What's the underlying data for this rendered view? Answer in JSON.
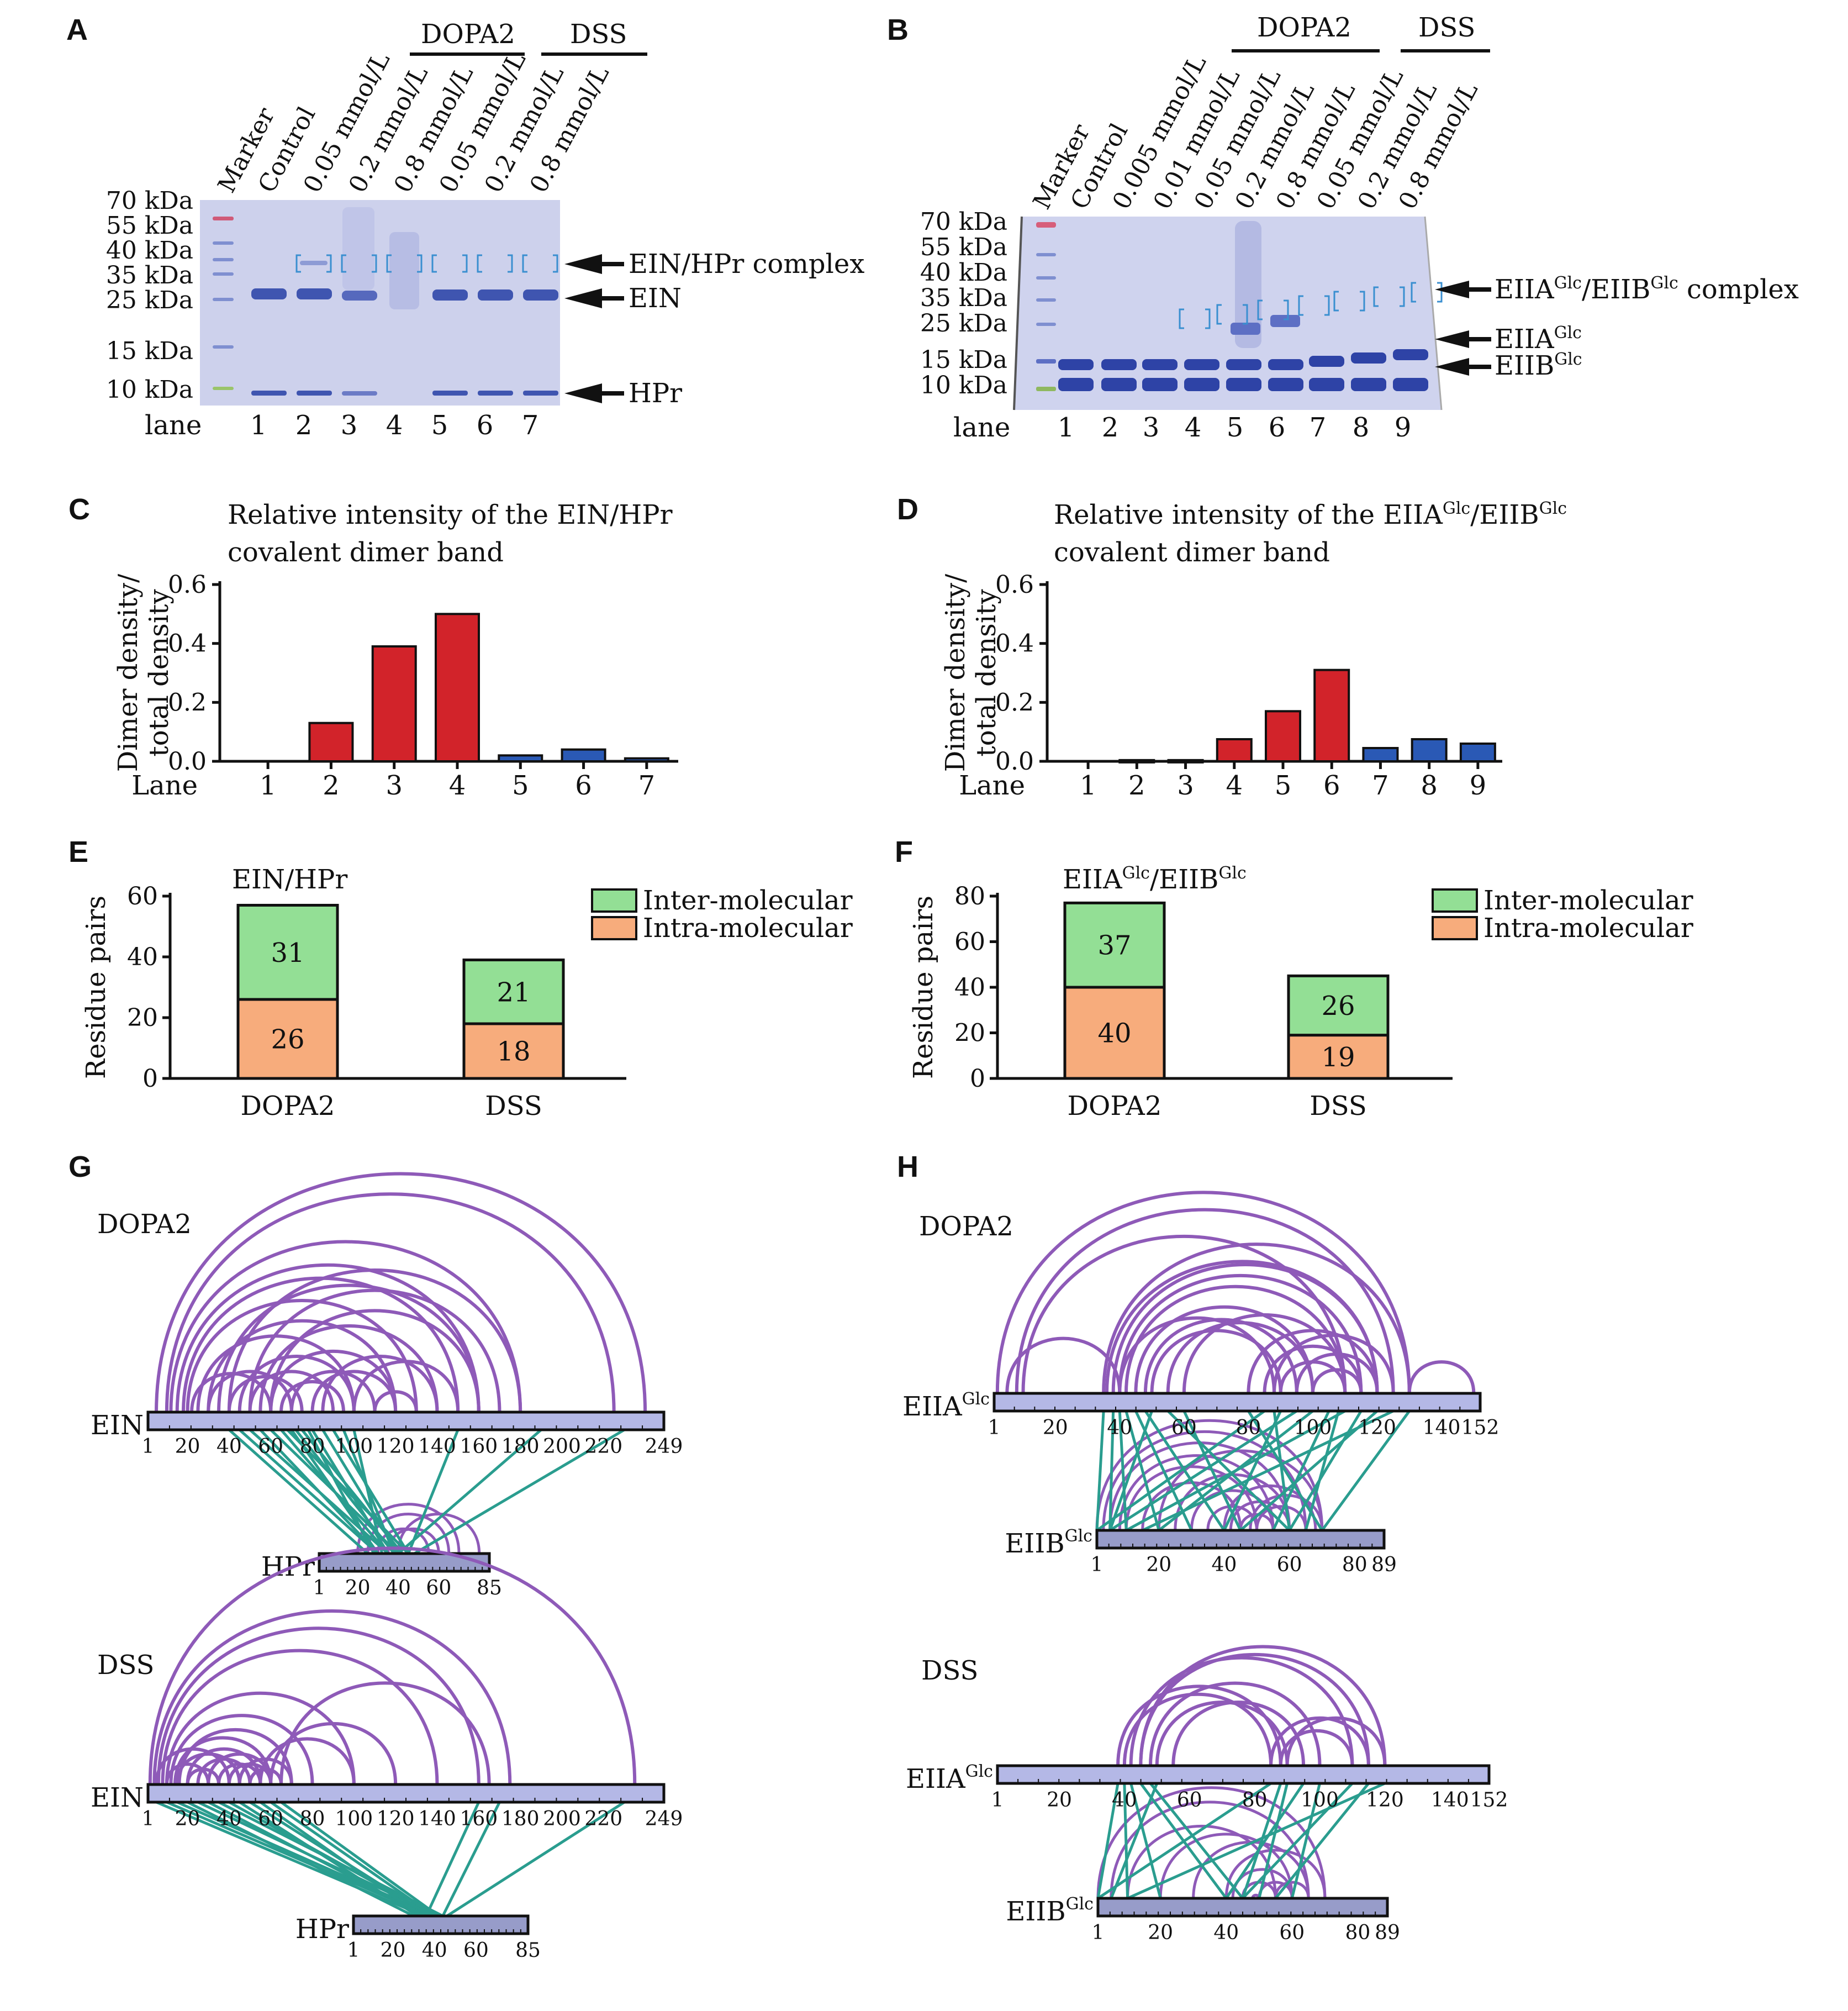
{
  "panels": {
    "A": {
      "letter": "A",
      "groups": [
        {
          "label": "DOPA2",
          "color": "#c1272d"
        },
        {
          "label": "DSS",
          "color": "#2b3990"
        }
      ],
      "lanes_header": [
        "Marker",
        "Control",
        "0.05 mmol/L",
        "0.2 mmol/L",
        "0.8 mmol/L",
        "0.05 mmol/L",
        "0.2 mmol/L",
        "0.8 mmol/L"
      ],
      "markers": [
        {
          "label": "70 kDa",
          "color": "#c1272d"
        },
        {
          "label": "55 kDa",
          "color": "#111111"
        },
        {
          "label": "40 kDa",
          "color": "#111111"
        },
        {
          "label": "35 kDa",
          "color": "#111111"
        },
        {
          "label": "25 kDa",
          "color": "#111111"
        },
        {
          "label": "15 kDa",
          "color": "#111111"
        },
        {
          "label": "10 kDa",
          "color": "#7cb342"
        }
      ],
      "bands": [
        "EIN/HPr complex",
        "EIN",
        "HPr"
      ],
      "lane_label": "lane",
      "lane_numbers": [
        "1",
        "2",
        "3",
        "4",
        "5",
        "6",
        "7"
      ]
    },
    "B": {
      "letter": "B",
      "groups": [
        {
          "label": "DOPA2",
          "color": "#c1272d"
        },
        {
          "label": "DSS",
          "color": "#2b3990"
        }
      ],
      "lanes_header": [
        "Marker",
        "Control",
        "0.005 mmol/L",
        "0.01 mmol/L",
        "0.05 mmol/L",
        "0.2 mmol/L",
        "0.8 mmol/L",
        "0.05 mmol/L",
        "0.2 mmol/L",
        "0.8 mmol/L"
      ],
      "markers": [
        {
          "label": "70 kDa",
          "color": "#c1272d"
        },
        {
          "label": "55 kDa",
          "color": "#111111"
        },
        {
          "label": "40 kDa",
          "color": "#111111"
        },
        {
          "label": "35 kDa",
          "color": "#111111"
        },
        {
          "label": "25 kDa",
          "color": "#111111"
        },
        {
          "label": "15 kDa",
          "color": "#111111"
        },
        {
          "label": "10 kDa",
          "color": "#7cb342"
        }
      ],
      "bands": [
        "EIIA",
        "Glc",
        "/EIIB",
        "Glc",
        " complex",
        "EIIA",
        "Glc",
        "EIIB",
        "Glc"
      ],
      "lane_label": "lane",
      "lane_numbers": [
        "1",
        "2",
        "3",
        "4",
        "5",
        "6",
        "7",
        "8",
        "9"
      ]
    },
    "C": {
      "letter": "C",
      "title_1": "Relative intensity of the EIN/HPr",
      "title_2": "covalent dimer band"
    },
    "D": {
      "letter": "D",
      "title_1a": "Relative intensity of the EIIA",
      "title_1b": "Glc",
      "title_1c": "/EIIB",
      "title_1d": "Glc",
      "title_2": "covalent dimer band"
    },
    "E": {
      "letter": "E",
      "title": "EIN/HPr"
    },
    "F": {
      "letter": "F",
      "title_a": "EIIA",
      "title_b": "Glc",
      "title_c": "/EIIB",
      "title_d": "Glc"
    },
    "G": {
      "letter": "G",
      "maps": [
        {
          "name": "DOPA2",
          "color": "#c1272d",
          "p1": "EIN",
          "p2": "HPr",
          "p1_ticks": [
            "1",
            "20",
            "40",
            "60",
            "80",
            "100",
            "120",
            "140",
            "160",
            "180",
            "200",
            "220",
            "249"
          ],
          "p2_ticks": [
            "1",
            "20",
            "40",
            "60",
            "85"
          ]
        },
        {
          "name": "DSS",
          "color": "#2b3990",
          "p1": "EIN",
          "p2": "HPr",
          "p1_ticks": [
            "1",
            "20",
            "40",
            "60",
            "80",
            "100",
            "120",
            "140",
            "160",
            "180",
            "200",
            "220",
            "249"
          ],
          "p2_ticks": [
            "1",
            "20",
            "40",
            "60",
            "85"
          ]
        }
      ]
    },
    "H": {
      "letter": "H",
      "maps": [
        {
          "name": "DOPA2",
          "color": "#c1272d",
          "p1": "EIIA",
          "p1_sup": "Glc",
          "p2": "EIIB",
          "p2_sup": "Glc",
          "p1_ticks": [
            "1",
            "20",
            "40",
            "60",
            "80",
            "100",
            "120",
            "140",
            "152"
          ],
          "p2_ticks": [
            "1",
            "20",
            "40",
            "60",
            "80",
            "89"
          ]
        },
        {
          "name": "DSS",
          "color": "#2b3990",
          "p1": "EIIA",
          "p1_sup": "Glc",
          "p2": "EIIB",
          "p2_sup": "Glc",
          "p1_ticks": [
            "1",
            "20",
            "40",
            "60",
            "80",
            "100",
            "120",
            "140",
            "152"
          ],
          "p2_ticks": [
            "1",
            "20",
            "40",
            "60",
            "80",
            "89"
          ]
        }
      ]
    }
  },
  "chart_data": [
    {
      "panel": "C",
      "type": "bar",
      "title": "Relative intensity of the EIN/HPr covalent dimer band",
      "xlabel": "Lane",
      "ylabel": "Dimer density/ total density",
      "ylabel_lines": [
        "Dimer density/",
        "total density"
      ],
      "categories": [
        "1",
        "2",
        "3",
        "4",
        "5",
        "6",
        "7"
      ],
      "values": [
        0.0,
        0.13,
        0.39,
        0.5,
        0.02,
        0.04,
        0.01
      ],
      "colors": [
        "#d2232a",
        "#d2232a",
        "#d2232a",
        "#d2232a",
        "#2a59b5",
        "#2a59b5",
        "#2a59b5"
      ],
      "yticks": [
        "0.0",
        "0.2",
        "0.4",
        "0.6"
      ],
      "ylim": [
        0,
        0.6
      ]
    },
    {
      "panel": "D",
      "type": "bar",
      "title": "Relative intensity of the EIIAGlc/EIIBGlc covalent dimer band",
      "xlabel": "Lane",
      "ylabel": "Dimer density/ total density",
      "ylabel_lines": [
        "Dimer density/",
        "total density"
      ],
      "categories": [
        "1",
        "2",
        "3",
        "4",
        "5",
        "6",
        "7",
        "8",
        "9"
      ],
      "values": [
        0.0,
        0.004,
        0.004,
        0.075,
        0.17,
        0.31,
        0.045,
        0.075,
        0.06
      ],
      "colors": [
        "#d2232a",
        "#d2232a",
        "#d2232a",
        "#d2232a",
        "#d2232a",
        "#d2232a",
        "#2a59b5",
        "#2a59b5",
        "#2a59b5"
      ],
      "yticks": [
        "0.0",
        "0.2",
        "0.4",
        "0.6"
      ],
      "ylim": [
        0,
        0.6
      ]
    },
    {
      "panel": "E",
      "type": "bar",
      "title": "EIN/HPr",
      "ylabel": "Residue pairs",
      "categories": [
        "DOPA2",
        "DSS"
      ],
      "series": [
        {
          "name": "Intra-molecular",
          "color": "#f7ac7c",
          "values": [
            26,
            18
          ]
        },
        {
          "name": "Inter-molecular",
          "color": "#93df95",
          "values": [
            31,
            21
          ]
        }
      ],
      "yticks": [
        "0",
        "20",
        "40",
        "60"
      ],
      "ylim": [
        0,
        60
      ]
    },
    {
      "panel": "F",
      "type": "bar",
      "title": "EIIAGlc/EIIBGlc",
      "ylabel": "Residue pairs",
      "categories": [
        "DOPA2",
        "DSS"
      ],
      "series": [
        {
          "name": "Intra-molecular",
          "color": "#f7ac7c",
          "values": [
            40,
            19
          ]
        },
        {
          "name": "Inter-molecular",
          "color": "#93df95",
          "values": [
            37,
            26
          ]
        }
      ],
      "yticks": [
        "0",
        "20",
        "40",
        "60",
        "80"
      ],
      "ylim": [
        0,
        80
      ]
    }
  ]
}
